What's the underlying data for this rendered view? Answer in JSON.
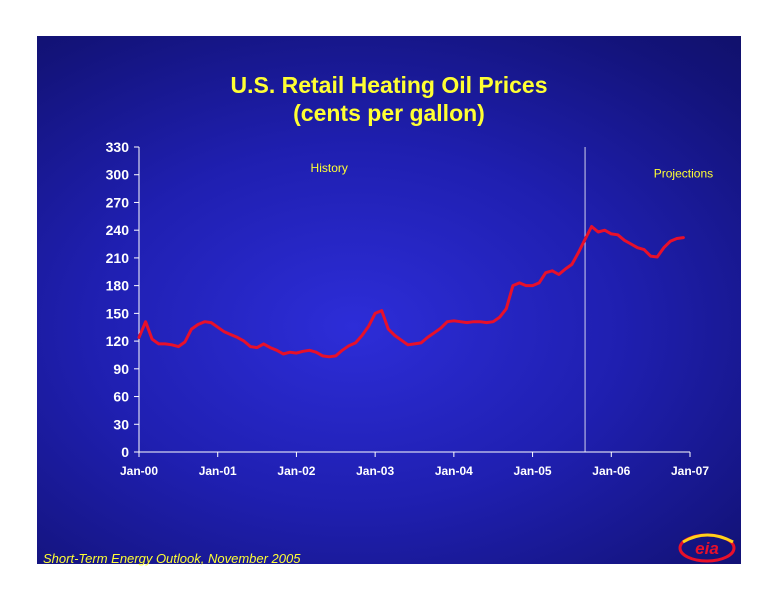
{
  "slide": {
    "footer": "Short-Term Energy Outlook, November 2005",
    "logo_text": "eia",
    "colors": {
      "title": "#ffff33",
      "line": "#e8102a",
      "axis": "#ffffff",
      "background": "#1f1fb0"
    }
  },
  "chart_data": {
    "type": "line",
    "title": "U.S. Retail Heating Oil Prices",
    "subtitle": "(cents per gallon)",
    "xlabel": "",
    "ylabel": "",
    "ylim": [
      0,
      330
    ],
    "yticks": [
      0,
      30,
      60,
      90,
      120,
      150,
      180,
      210,
      240,
      270,
      300,
      330
    ],
    "xticks": [
      "Jan-00",
      "Jan-01",
      "Jan-02",
      "Jan-03",
      "Jan-04",
      "Jan-05",
      "Jan-06",
      "Jan-07"
    ],
    "xlim": [
      "Jan-00",
      "Jan-07"
    ],
    "grid": false,
    "legend": "none",
    "annotations": [
      {
        "text": "History",
        "x": "Jun-02",
        "y": 303
      },
      {
        "text": "Projections",
        "x": "Dec-06",
        "y": 297
      }
    ],
    "divider": {
      "x": "Sep-05"
    },
    "series": [
      {
        "x": [
          "Jan-00",
          "Feb-00",
          "Mar-00",
          "Apr-00",
          "May-00",
          "Jun-00",
          "Jul-00",
          "Aug-00",
          "Sep-00",
          "Oct-00",
          "Nov-00",
          "Dec-00",
          "Jan-01",
          "Feb-01",
          "Mar-01",
          "Apr-01",
          "May-01",
          "Jun-01",
          "Jul-01",
          "Aug-01",
          "Sep-01",
          "Oct-01",
          "Nov-01",
          "Dec-01",
          "Jan-02",
          "Feb-02",
          "Mar-02",
          "Apr-02",
          "May-02",
          "Jun-02",
          "Jul-02",
          "Aug-02",
          "Sep-02",
          "Oct-02",
          "Nov-02",
          "Dec-02",
          "Jan-03",
          "Feb-03",
          "Mar-03",
          "Apr-03",
          "May-03",
          "Jun-03",
          "Jul-03",
          "Aug-03",
          "Sep-03",
          "Oct-03",
          "Nov-03",
          "Dec-03",
          "Jan-04",
          "Feb-04",
          "Mar-04",
          "Apr-04",
          "May-04",
          "Jun-04",
          "Jul-04",
          "Aug-04",
          "Sep-04",
          "Oct-04",
          "Nov-04",
          "Dec-04",
          "Jan-05",
          "Feb-05",
          "Mar-05",
          "Apr-05",
          "May-05",
          "Jun-05",
          "Jul-05",
          "Aug-05",
          "Sep-05",
          "Oct-05",
          "Nov-05",
          "Dec-05",
          "Jan-06",
          "Feb-06",
          "Mar-06",
          "Apr-06",
          "May-06",
          "Jun-06",
          "Jul-06",
          "Aug-06",
          "Sep-06",
          "Oct-06",
          "Nov-06",
          "Dec-06"
        ],
        "values": [
          124,
          141,
          122,
          117,
          117,
          116,
          114,
          119,
          133,
          138,
          141,
          140,
          135,
          130,
          127,
          124,
          120,
          114,
          113,
          117,
          113,
          110,
          106,
          108,
          107,
          109,
          110,
          108,
          104,
          103,
          104,
          110,
          115,
          118,
          126,
          136,
          150,
          153,
          133,
          126,
          121,
          116,
          117,
          118,
          124,
          129,
          134,
          141,
          142,
          141,
          140,
          141,
          141,
          140,
          141,
          146,
          155,
          180,
          183,
          180,
          180,
          183,
          194,
          196,
          192,
          198,
          203,
          216,
          230,
          244,
          238,
          240,
          236,
          235,
          229,
          225,
          221,
          219,
          212,
          211,
          221,
          228,
          231,
          232
        ]
      }
    ]
  }
}
